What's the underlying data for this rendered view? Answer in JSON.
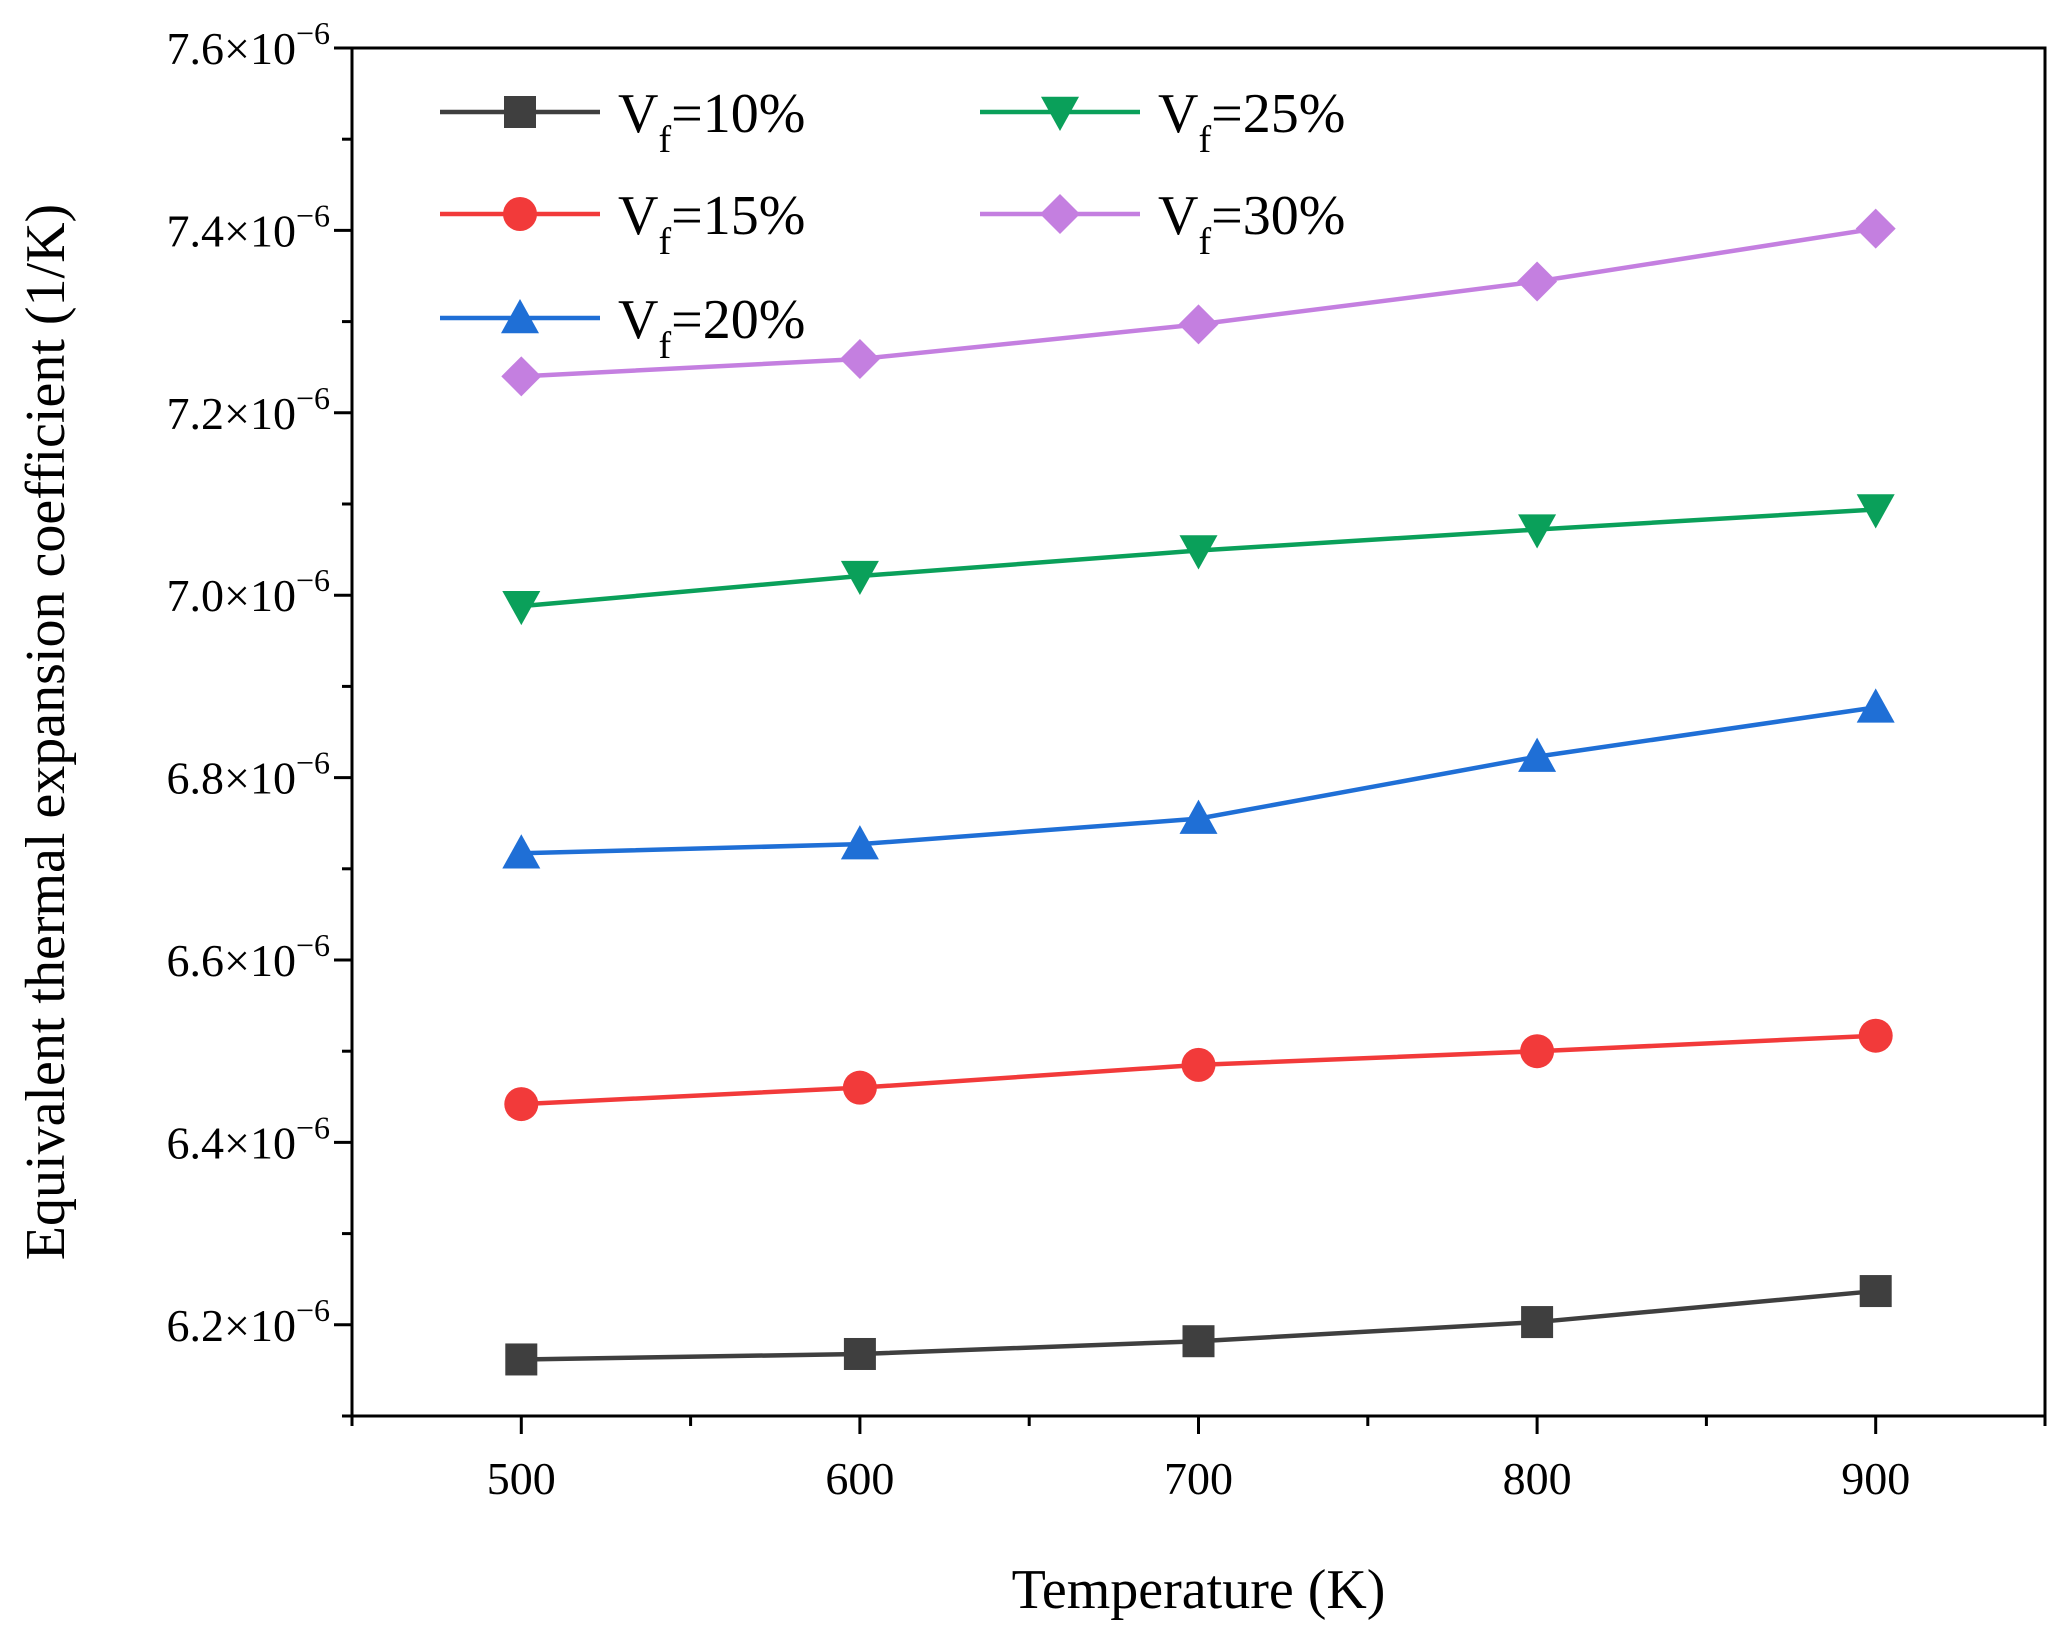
{
  "chart_data": {
    "type": "line",
    "title": "",
    "xlabel": "Temperature (K)",
    "ylabel": "Equivalent thermal expansion coefficient (1/K)",
    "xlim": [
      450,
      950
    ],
    "ylim": [
      6.1e-06,
      7.6e-06
    ],
    "x_ticks": [
      500,
      600,
      700,
      800,
      900
    ],
    "x_tick_labels": [
      "500",
      "600",
      "700",
      "800",
      "900"
    ],
    "y_ticks": [
      6.2e-06,
      6.4e-06,
      6.6e-06,
      6.8e-06,
      7e-06,
      7.2e-06,
      7.4e-06,
      7.6e-06
    ],
    "y_tick_mantissas": [
      "6.2",
      "6.4",
      "6.6",
      "6.8",
      "7.0",
      "7.2",
      "7.4",
      "7.6"
    ],
    "y_tick_times": "×10",
    "y_tick_exponent": "−6",
    "grid": false,
    "legend_position": "top-left",
    "x": [
      500,
      600,
      700,
      800,
      900
    ],
    "series": [
      {
        "name": "Vf=10%",
        "legend_main": "V",
        "legend_sub": "f",
        "legend_rest": "=10%",
        "color": "#3f3f3f",
        "marker": "square",
        "values": [
          6.162e-06,
          6.168e-06,
          6.182e-06,
          6.203e-06,
          6.237e-06
        ]
      },
      {
        "name": "Vf=15%",
        "legend_main": "V",
        "legend_sub": "f",
        "legend_rest": "=15%",
        "color": "#f23a3a",
        "marker": "circle",
        "values": [
          6.442e-06,
          6.46e-06,
          6.485e-06,
          6.5e-06,
          6.517e-06
        ]
      },
      {
        "name": "Vf=20%",
        "legend_main": "V",
        "legend_sub": "f",
        "legend_rest": "=20%",
        "color": "#1f6fd6",
        "marker": "triangle-up",
        "values": [
          6.717e-06,
          6.727e-06,
          6.755e-06,
          6.823e-06,
          6.877e-06
        ]
      },
      {
        "name": "Vf=25%",
        "legend_main": "V",
        "legend_sub": "f",
        "legend_rest": "=25%",
        "color": "#0aa05a",
        "marker": "triangle-down",
        "values": [
          6.988e-06,
          7.021e-06,
          7.049e-06,
          7.072e-06,
          7.094e-06
        ]
      },
      {
        "name": "Vf=30%",
        "legend_main": "V",
        "legend_sub": "f",
        "legend_rest": "=30%",
        "color": "#c47fe0",
        "marker": "diamond",
        "values": [
          7.24e-06,
          7.259e-06,
          7.297e-06,
          7.344e-06,
          7.402e-06
        ]
      }
    ]
  }
}
